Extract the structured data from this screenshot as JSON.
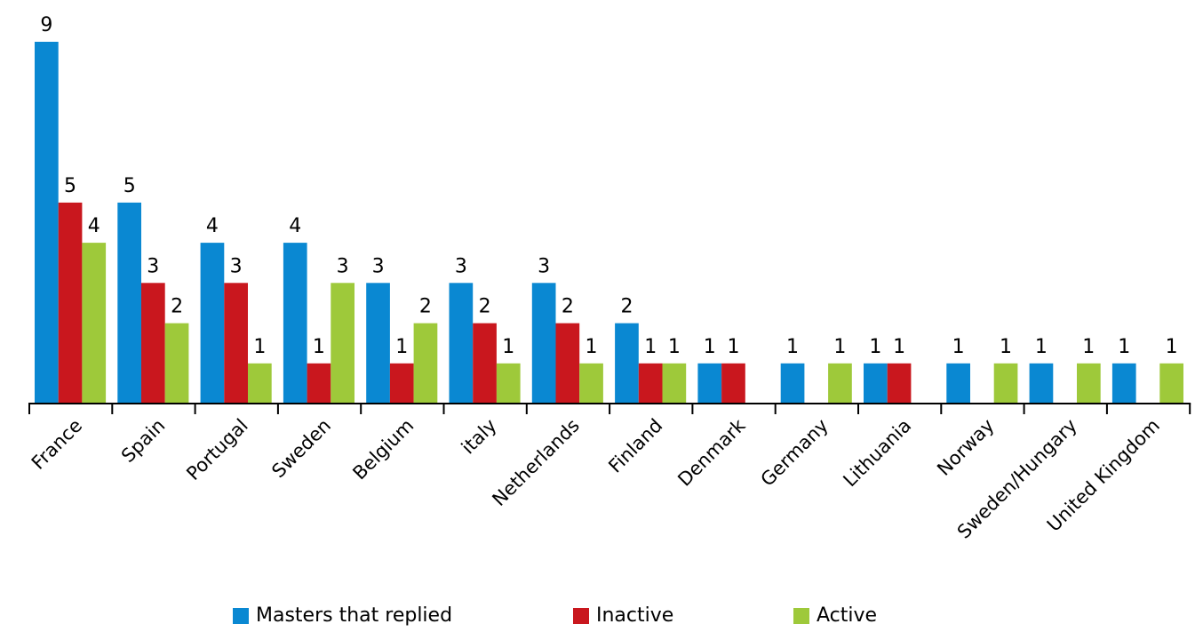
{
  "chart_data": {
    "type": "bar",
    "categories": [
      "France",
      "Spain",
      "Portugal",
      "Sweden",
      "Belgium",
      "italy",
      "Netherlands",
      "Finland",
      "Denmark",
      "Germany",
      "Lithuania",
      "Norway",
      "Sweden/Hungary",
      "United Kingdom"
    ],
    "series": [
      {
        "name": "Masters that replied",
        "color": "#0a88d2",
        "values": [
          9,
          5,
          4,
          4,
          3,
          3,
          3,
          2,
          1,
          1,
          1,
          1,
          1,
          1
        ]
      },
      {
        "name": "Inactive",
        "color": "#c9171e",
        "values": [
          5,
          3,
          3,
          1,
          1,
          2,
          2,
          1,
          1,
          null,
          1,
          null,
          null,
          null
        ]
      },
      {
        "name": "Active",
        "color": "#9ec93a",
        "values": [
          4,
          2,
          1,
          3,
          2,
          1,
          1,
          1,
          null,
          1,
          null,
          1,
          1,
          1
        ]
      }
    ],
    "ylim": [
      0,
      9
    ],
    "grid": false,
    "legend_position": "bottom"
  }
}
